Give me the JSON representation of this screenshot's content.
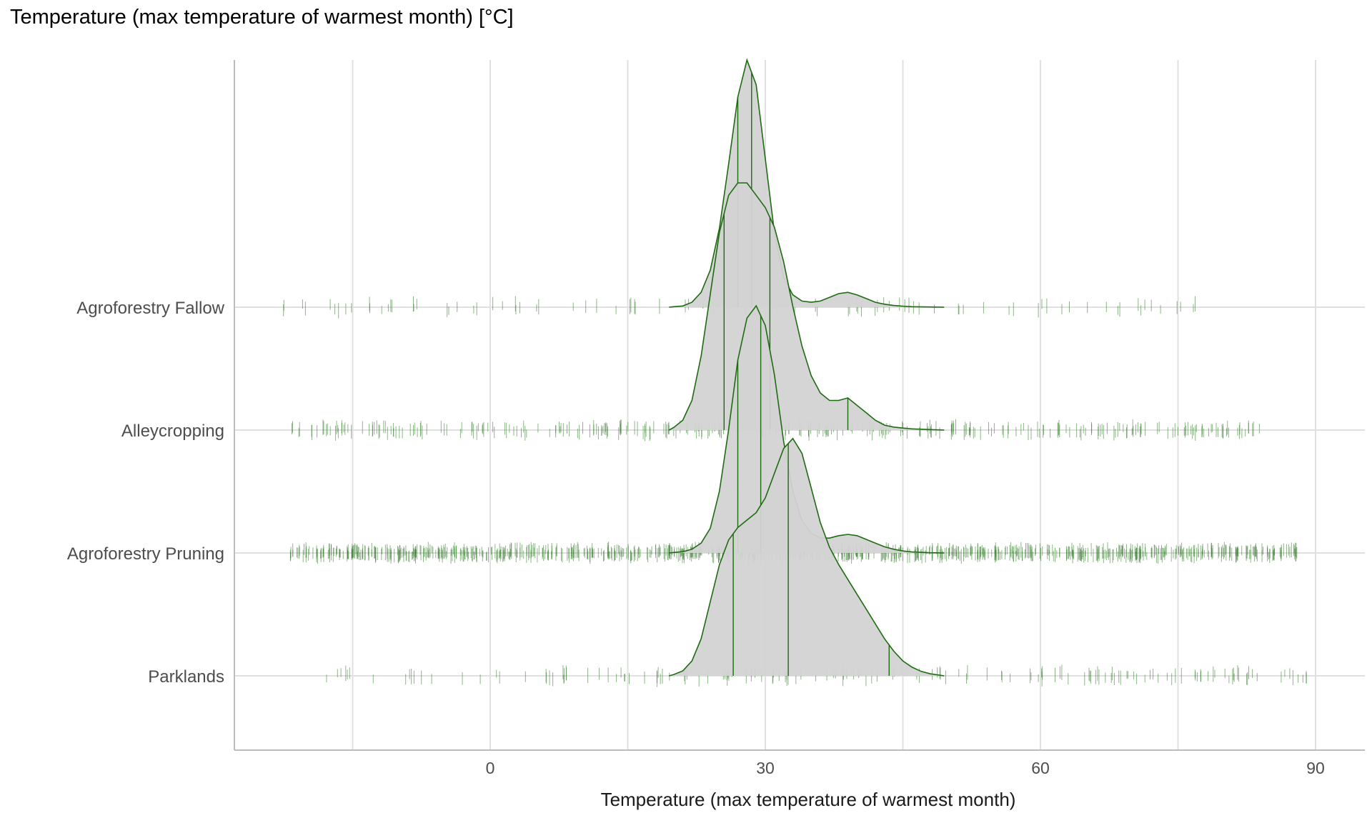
{
  "page_title": "Temperature (max temperature of warmest month) [°C]",
  "chart_data": {
    "type": "ridgeline",
    "title": "Temperature (max temperature of warmest month) [°C]",
    "xlabel": "Temperature (max temperature of warmest month)",
    "ylabel": "",
    "xlim": [
      -30,
      95
    ],
    "x_ticks": [
      0,
      30,
      60,
      90
    ],
    "grid": true,
    "colors": {
      "line": "#1e6b12",
      "fill": "#d3d3d3",
      "rug": "#2f7a27",
      "grid": "#e0e0e0",
      "axis": "#bdbdbd"
    },
    "categories": [
      "Agroforestry Fallow",
      "Alleycropping",
      "Agroforestry Pruning",
      "Parklands"
    ],
    "series": [
      {
        "name": "Agroforestry Fallow",
        "density_range": [
          19.5,
          49.5
        ],
        "density": [
          [
            19.5,
            0.0
          ],
          [
            20,
            0.002
          ],
          [
            21,
            0.005
          ],
          [
            22,
            0.02
          ],
          [
            23,
            0.06
          ],
          [
            24,
            0.15
          ],
          [
            25,
            0.32
          ],
          [
            26,
            0.58
          ],
          [
            27,
            0.85
          ],
          [
            28,
            1.0
          ],
          [
            29,
            0.9
          ],
          [
            30,
            0.6
          ],
          [
            31,
            0.3
          ],
          [
            32,
            0.12
          ],
          [
            33,
            0.05
          ],
          [
            34,
            0.025
          ],
          [
            35,
            0.02
          ],
          [
            36,
            0.025
          ],
          [
            37,
            0.04
          ],
          [
            38,
            0.055
          ],
          [
            39,
            0.06
          ],
          [
            40,
            0.05
          ],
          [
            41,
            0.035
          ],
          [
            42,
            0.02
          ],
          [
            43,
            0.012
          ],
          [
            44,
            0.007
          ],
          [
            45,
            0.004
          ],
          [
            46,
            0.002
          ],
          [
            48,
            0.001
          ],
          [
            49.5,
            0.0
          ]
        ],
        "quantile_lines": [
          27.0,
          28.5
        ],
        "rug_range": [
          -23,
          77
        ],
        "rug_count": 90
      },
      {
        "name": "Alleycropping",
        "density_range": [
          19.5,
          49.5
        ],
        "density": [
          [
            19.5,
            0.0
          ],
          [
            20,
            0.01
          ],
          [
            21,
            0.04
          ],
          [
            22,
            0.12
          ],
          [
            23,
            0.3
          ],
          [
            24,
            0.55
          ],
          [
            25,
            0.8
          ],
          [
            26,
            0.95
          ],
          [
            27,
            1.0
          ],
          [
            28,
            1.0
          ],
          [
            29,
            0.95
          ],
          [
            30,
            0.9
          ],
          [
            31,
            0.82
          ],
          [
            32,
            0.68
          ],
          [
            33,
            0.5
          ],
          [
            34,
            0.34
          ],
          [
            35,
            0.22
          ],
          [
            36,
            0.15
          ],
          [
            37,
            0.12
          ],
          [
            38,
            0.12
          ],
          [
            39,
            0.13
          ],
          [
            40,
            0.1
          ],
          [
            41,
            0.07
          ],
          [
            42,
            0.04
          ],
          [
            43,
            0.02
          ],
          [
            44,
            0.012
          ],
          [
            45,
            0.008
          ],
          [
            46,
            0.005
          ],
          [
            48,
            0.002
          ],
          [
            49.5,
            0.0
          ]
        ],
        "quantile_lines": [
          25.5,
          30.5,
          39.0
        ],
        "rug_range": [
          -22,
          84
        ],
        "rug_count": 320
      },
      {
        "name": "Agroforestry Pruning",
        "density_range": [
          19.5,
          49.5
        ],
        "density": [
          [
            19.5,
            0.0
          ],
          [
            20,
            0.002
          ],
          [
            21,
            0.005
          ],
          [
            22,
            0.015
          ],
          [
            23,
            0.04
          ],
          [
            24,
            0.1
          ],
          [
            25,
            0.25
          ],
          [
            26,
            0.5
          ],
          [
            27,
            0.78
          ],
          [
            28,
            0.95
          ],
          [
            29,
            1.0
          ],
          [
            30,
            0.92
          ],
          [
            31,
            0.72
          ],
          [
            32,
            0.45
          ],
          [
            33,
            0.25
          ],
          [
            34,
            0.13
          ],
          [
            35,
            0.08
          ],
          [
            36,
            0.06
          ],
          [
            37,
            0.06
          ],
          [
            38,
            0.07
          ],
          [
            39,
            0.075
          ],
          [
            40,
            0.07
          ],
          [
            41,
            0.055
          ],
          [
            42,
            0.04
          ],
          [
            43,
            0.025
          ],
          [
            44,
            0.015
          ],
          [
            45,
            0.008
          ],
          [
            46,
            0.004
          ],
          [
            48,
            0.001
          ],
          [
            49.5,
            0.0
          ]
        ],
        "quantile_lines": [
          27.0,
          29.5
        ],
        "rug_range": [
          -22,
          88
        ],
        "rug_count": 900
      },
      {
        "name": "Parklands",
        "density_range": [
          19.5,
          49.5
        ],
        "density": [
          [
            19.5,
            0.0
          ],
          [
            20,
            0.005
          ],
          [
            21,
            0.02
          ],
          [
            22,
            0.06
          ],
          [
            23,
            0.15
          ],
          [
            24,
            0.3
          ],
          [
            25,
            0.45
          ],
          [
            26,
            0.55
          ],
          [
            27,
            0.6
          ],
          [
            28,
            0.63
          ],
          [
            29,
            0.66
          ],
          [
            30,
            0.72
          ],
          [
            31,
            0.82
          ],
          [
            32,
            0.92
          ],
          [
            33,
            0.96
          ],
          [
            34,
            0.9
          ],
          [
            35,
            0.76
          ],
          [
            36,
            0.62
          ],
          [
            37,
            0.52
          ],
          [
            38,
            0.45
          ],
          [
            39,
            0.39
          ],
          [
            40,
            0.33
          ],
          [
            41,
            0.27
          ],
          [
            42,
            0.21
          ],
          [
            43,
            0.15
          ],
          [
            44,
            0.1
          ],
          [
            45,
            0.06
          ],
          [
            46,
            0.035
          ],
          [
            47,
            0.018
          ],
          [
            48,
            0.008
          ],
          [
            49.5,
            0.0
          ]
        ],
        "quantile_lines": [
          26.5,
          32.5,
          43.5
        ],
        "rug_range": [
          -18,
          90
        ],
        "rug_count": 160
      }
    ]
  }
}
